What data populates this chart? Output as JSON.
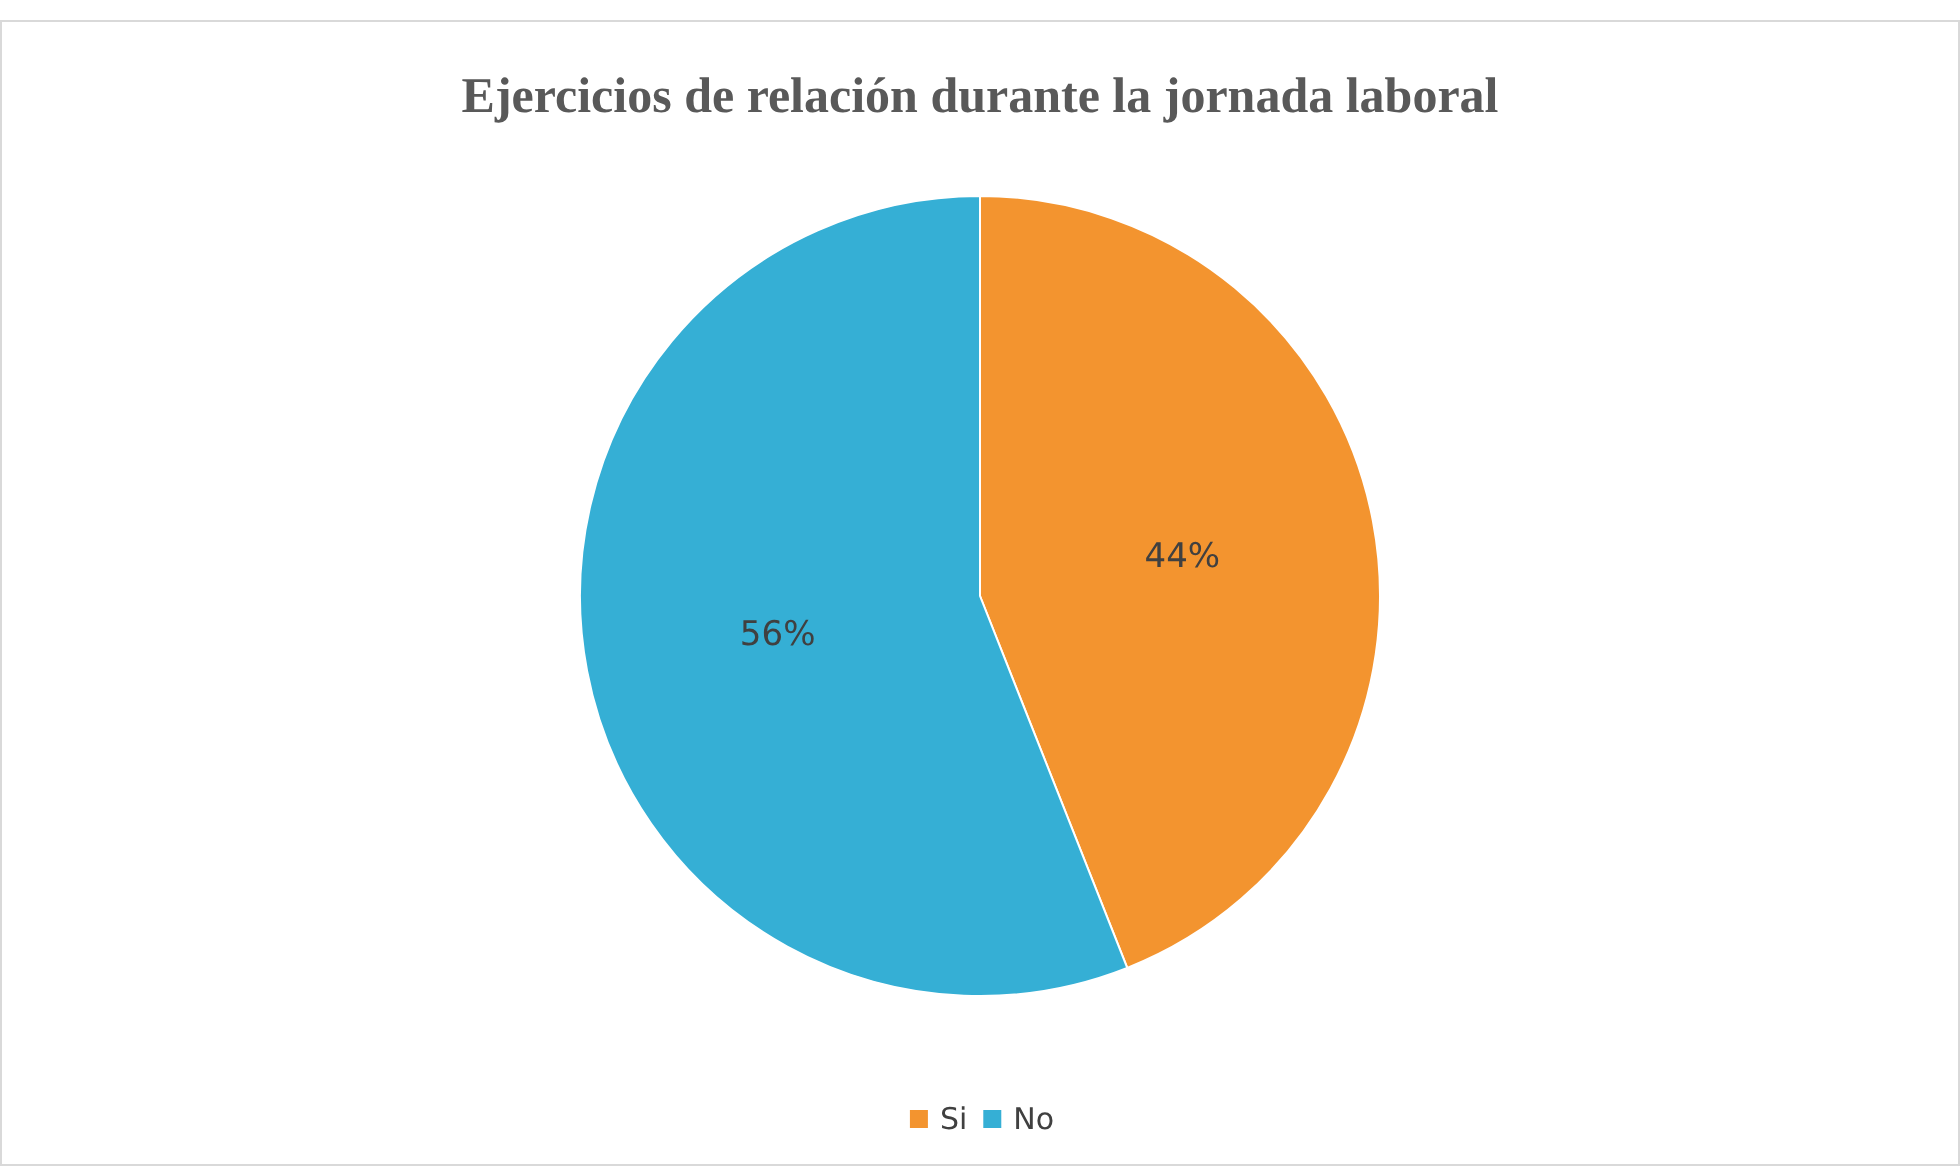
{
  "chart_data": {
    "type": "pie",
    "title": "Ejercicios de relación durante la jornada laboral",
    "categories": [
      "Si",
      "No"
    ],
    "values": [
      44,
      56
    ],
    "value_labels": [
      "44%",
      "56%"
    ],
    "colors": [
      "#f3942f",
      "#35afd5"
    ],
    "legend": "bottom"
  }
}
